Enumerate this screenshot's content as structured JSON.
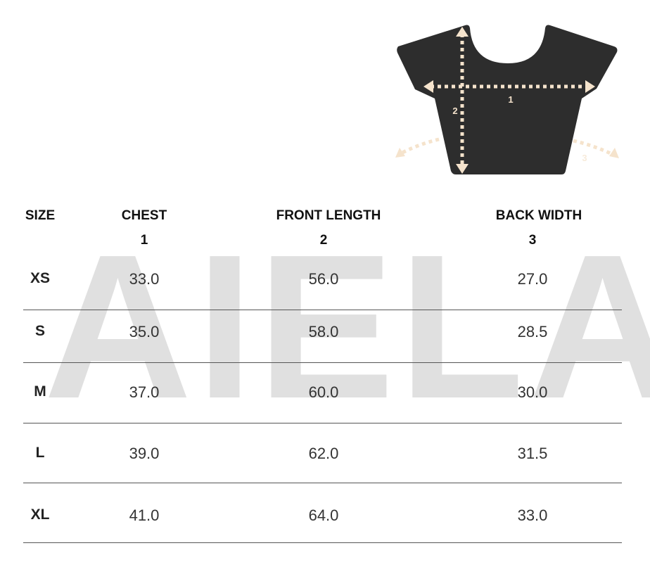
{
  "watermark": "AIELA",
  "diagram": {
    "labels": [
      "1",
      "2",
      "3"
    ],
    "garment_color": "#2d2d2d",
    "arrow_color": "#f5e3cc"
  },
  "table": {
    "headers": [
      {
        "name": "SIZE",
        "num": ""
      },
      {
        "name": "CHEST",
        "num": "1"
      },
      {
        "name": "FRONT LENGTH",
        "num": "2"
      },
      {
        "name": "BACK WIDTH",
        "num": "3"
      }
    ],
    "rows": [
      {
        "size": "XS",
        "chest": "33.0",
        "front": "56.0",
        "back": "27.0"
      },
      {
        "size": "S",
        "chest": "35.0",
        "front": "58.0",
        "back": "28.5"
      },
      {
        "size": "M",
        "chest": "37.0",
        "front": "60.0",
        "back": "30.0"
      },
      {
        "size": "L",
        "chest": "39.0",
        "front": "62.0",
        "back": "31.5"
      },
      {
        "size": "XL",
        "chest": "41.0",
        "front": "64.0",
        "back": "33.0"
      }
    ]
  }
}
